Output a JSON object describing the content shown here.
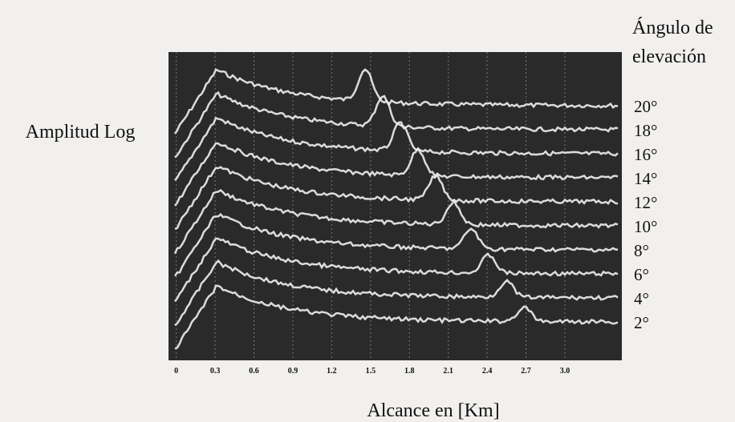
{
  "chart_data": {
    "type": "scope",
    "y_label": "Amplitud Log",
    "x_label": "Alcance en [Km]",
    "legend_title": [
      "Ángulo de",
      "elevación"
    ],
    "trace_labels": [
      "20°",
      "18°",
      "16°",
      "14°",
      "12°",
      "10°",
      "8°",
      "6°",
      "4°",
      "2°"
    ],
    "xlim": [
      -0.06,
      3.44
    ],
    "xticks": [
      0,
      0.3,
      0.6,
      0.9,
      1.2,
      1.5,
      1.8,
      2.1,
      2.4,
      2.7,
      {
        "value": 3,
        "label": "3.0"
      }
    ],
    "grid": true
  }
}
